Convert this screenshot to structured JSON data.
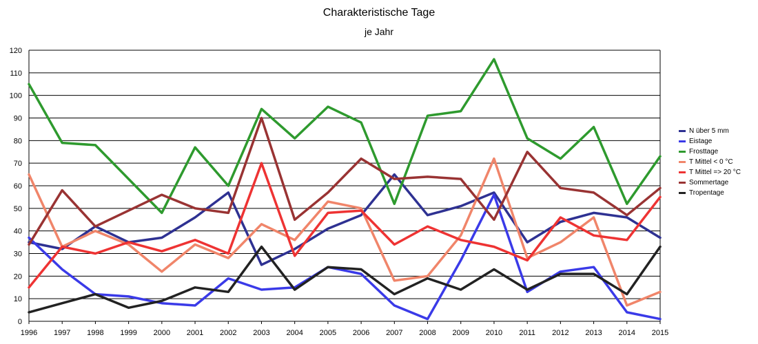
{
  "chart_data": {
    "type": "line",
    "title": "Charakteristische Tage",
    "subtitle": "je Jahr",
    "xlabel": "",
    "ylabel": "",
    "ylim": [
      0,
      120
    ],
    "yticks": [
      0,
      10,
      20,
      30,
      40,
      50,
      60,
      70,
      80,
      90,
      100,
      110,
      120
    ],
    "grid": true,
    "legend_position": "right",
    "x": [
      "1996",
      "1997",
      "1998",
      "1999",
      "2000",
      "2001",
      "2002",
      "2003",
      "2004",
      "2005",
      "2006",
      "2007",
      "2008",
      "2009",
      "2010",
      "2011",
      "2012",
      "2013",
      "2014",
      "2015"
    ],
    "series": [
      {
        "name": "N über 5 mm",
        "color": "#2e3192",
        "values": [
          35,
          32,
          42,
          35,
          37,
          46,
          57,
          25,
          32,
          41,
          47,
          65,
          47,
          51,
          57,
          35,
          44,
          48,
          46,
          37
        ]
      },
      {
        "name": "Eistage",
        "color": "#3a3ae8",
        "values": [
          37,
          23,
          12,
          11,
          8,
          7,
          19,
          14,
          15,
          24,
          21,
          7,
          1,
          27,
          56,
          13,
          22,
          24,
          4,
          1
        ]
      },
      {
        "name": "Frosttage",
        "color": "#2e9a2e",
        "values": [
          105,
          79,
          78,
          63,
          48,
          77,
          60,
          94,
          81,
          95,
          88,
          52,
          91,
          93,
          116,
          81,
          72,
          86,
          52,
          73
        ]
      },
      {
        "name": "T Mittel < 0 °C",
        "color": "#f0856a",
        "values": [
          65,
          33,
          40,
          34,
          22,
          34,
          28,
          43,
          36,
          53,
          50,
          18,
          20,
          38,
          72,
          28,
          35,
          46,
          7,
          13
        ]
      },
      {
        "name": "T Mittel => 20 °C",
        "color": "#ee3333",
        "values": [
          15,
          33,
          30,
          35,
          31,
          36,
          30,
          70,
          29,
          48,
          49,
          34,
          42,
          36,
          33,
          27,
          46,
          38,
          36,
          55
        ]
      },
      {
        "name": "Sommertage",
        "color": "#993333",
        "values": [
          34,
          58,
          42,
          49,
          56,
          50,
          48,
          90,
          45,
          57,
          72,
          63,
          64,
          63,
          45,
          75,
          59,
          57,
          47,
          59
        ]
      },
      {
        "name": "Tropentage",
        "color": "#222222",
        "values": [
          4,
          8,
          12,
          6,
          9,
          15,
          13,
          33,
          14,
          24,
          23,
          12,
          19,
          14,
          23,
          14,
          21,
          21,
          12,
          33
        ]
      }
    ]
  }
}
